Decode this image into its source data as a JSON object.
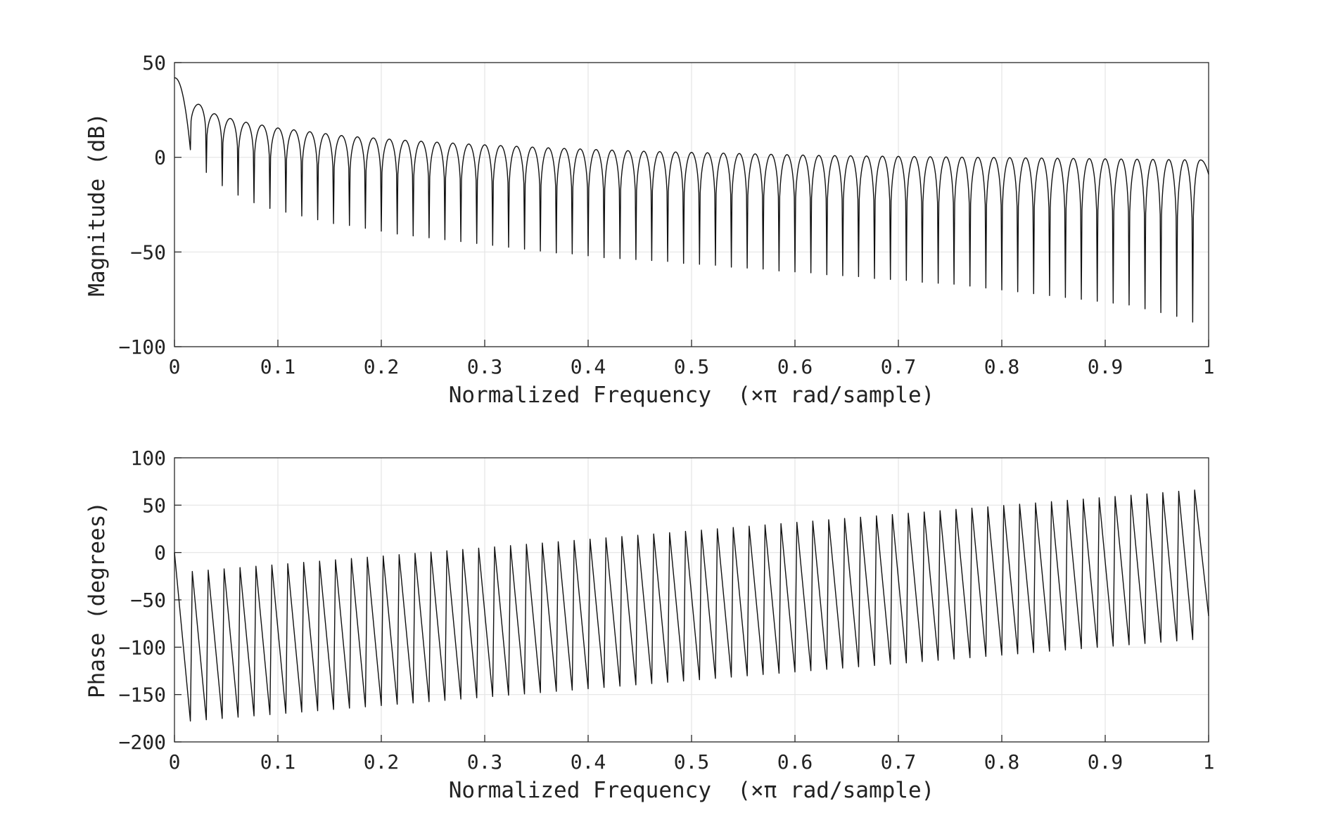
{
  "chart_data": [
    {
      "type": "line",
      "title": "",
      "xlabel": "Normalized Frequency  (×π rad/sample)",
      "ylabel": "Magnitude (dB)",
      "xlim": [
        0,
        1
      ],
      "ylim": [
        -100,
        50
      ],
      "xticks": [
        0,
        0.1,
        0.2,
        0.3,
        0.4,
        0.5,
        0.6,
        0.7,
        0.8,
        0.9,
        1
      ],
      "xtick_labels": [
        "0",
        "0.1",
        "0.2",
        "0.3",
        "0.4",
        "0.5",
        "0.6",
        "0.7",
        "0.8",
        "0.9",
        "1"
      ],
      "yticks": [
        50,
        0,
        -50,
        -100
      ],
      "ytick_labels": [
        "50",
        "0",
        "−50",
        "−100"
      ],
      "grid": true,
      "legend": "none",
      "series_color": "#111111",
      "num_lobes": 65,
      "series": [
        {
          "x": [
            0,
            0.0154,
            0.0308,
            0.0462,
            0.0615,
            0.0769,
            0.0923,
            0.1077,
            0.1231,
            0.1385,
            0.1538,
            0.1692,
            0.1846,
            0.2,
            0.2154,
            0.2308,
            0.2462,
            0.2615,
            0.2769,
            0.2923,
            0.3077,
            0.3231,
            0.3385,
            0.3538,
            0.3692,
            0.3846,
            0.4,
            0.4154,
            0.4308,
            0.4462,
            0.4615,
            0.4769,
            0.4923,
            0.5077,
            0.5231,
            0.5385,
            0.5538,
            0.5692,
            0.5846,
            0.6,
            0.6154,
            0.6308,
            0.6462,
            0.6615,
            0.6769,
            0.6923,
            0.7077,
            0.7231,
            0.7385,
            0.7538,
            0.7692,
            0.7846,
            0.8,
            0.8154,
            0.8308,
            0.8462,
            0.8615,
            0.8769,
            0.8923,
            0.9077,
            0.9231,
            0.9385,
            0.9538,
            0.9692,
            0.9846,
            1
          ],
          "peaks": [
            42,
            28,
            23,
            20.5,
            18.5,
            17,
            15.5,
            14.5,
            13.5,
            12.5,
            11.5,
            10.8,
            10.2,
            9.6,
            9,
            8.5,
            8,
            7.5,
            7,
            6.6,
            6.2,
            5.8,
            5.4,
            5,
            4.7,
            4.4,
            4.1,
            3.8,
            3.5,
            3.2,
            3,
            2.8,
            2.6,
            2.4,
            2.2,
            2,
            1.8,
            1.6,
            1.4,
            1.2,
            1,
            0.9,
            0.8,
            0.7,
            0.6,
            0.5,
            0.4,
            0.3,
            0.2,
            0.1,
            0,
            -0.1,
            -0.2,
            -0.3,
            -0.4,
            -0.5,
            -0.6,
            -0.7,
            -0.8,
            -0.9,
            -1,
            -1.1,
            -1.2,
            -1.3,
            -1.4
          ],
          "nulls": [
            4,
            -8,
            -15,
            -20,
            -24,
            -27,
            -29,
            -31,
            -33,
            -35,
            -36,
            -37.5,
            -39,
            -40.5,
            -41.5,
            -42.5,
            -43.5,
            -44.5,
            -45.5,
            -46.5,
            -47.5,
            -48.5,
            -49.5,
            -50.5,
            -51,
            -52,
            -53,
            -53.5,
            -54,
            -54.5,
            -55,
            -56,
            -56.5,
            -57,
            -58,
            -58.5,
            -59,
            -60,
            -60.5,
            -61,
            -62,
            -62.5,
            -63,
            -64,
            -64.5,
            -65,
            -66,
            -66.5,
            -67,
            -68,
            -69,
            -70,
            -71,
            -72,
            -73,
            -74,
            -75,
            -76,
            -77,
            -78,
            -80,
            -82,
            -84,
            -87,
            -92
          ],
          "end_value": -9
        }
      ]
    },
    {
      "type": "line",
      "title": "",
      "xlabel": "Normalized Frequency  (×π rad/sample)",
      "ylabel": "Phase (degrees)",
      "xlim": [
        0,
        1
      ],
      "ylim": [
        -200,
        100
      ],
      "xticks": [
        0,
        0.1,
        0.2,
        0.3,
        0.4,
        0.5,
        0.6,
        0.7,
        0.8,
        0.9,
        1
      ],
      "xtick_labels": [
        "0",
        "0.1",
        "0.2",
        "0.3",
        "0.4",
        "0.5",
        "0.6",
        "0.7",
        "0.8",
        "0.9",
        "1"
      ],
      "yticks": [
        100,
        50,
        0,
        -50,
        -100,
        -150,
        -200
      ],
      "ytick_labels": [
        "100",
        "50",
        "0",
        "−50",
        "−100",
        "−150",
        "−200"
      ],
      "grid": true,
      "legend": "none",
      "series_color": "#111111",
      "num_teeth": 64,
      "series": [
        {
          "start_value": 0,
          "first_bottom": -178,
          "bottom_start": -178,
          "bottom_end": -92,
          "top_start": -20,
          "top_end": 66,
          "end_value": -67
        }
      ]
    }
  ]
}
